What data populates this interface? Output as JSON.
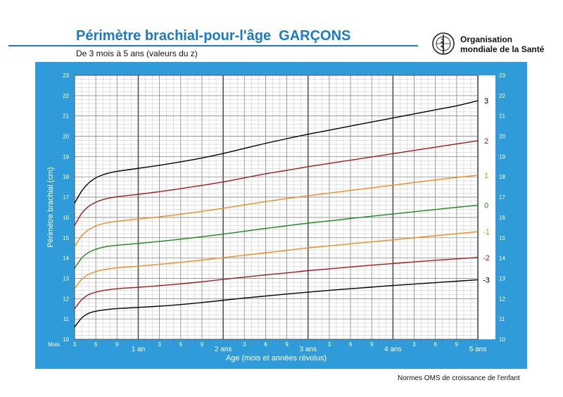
{
  "header": {
    "title": "Périmètre brachial-pour-l'âge  GARÇONS",
    "subtitle": "De 3 mois à 5 ans (valeurs du z)",
    "org_line1": "Organisation",
    "org_line2": "mondiale de la Santé",
    "logo_icon": "who-emblem-icon"
  },
  "footer": {
    "text": "Normes OMS de croissance de l'enfant"
  },
  "colors": {
    "brand_blue": "#1a7ac3",
    "panel_blue": "#2f9bd8",
    "black": "#000000",
    "red": "#a31b1b",
    "orange": "#f28a1a",
    "green": "#1b8a1b"
  },
  "chart_data": {
    "type": "line",
    "title": "Périmètre brachial-pour-l'âge  GARÇONS",
    "xlabel": "Age (mois et années révolus)",
    "ylabel": "Périmètre brachial (cm)",
    "x_unit_label": "Mois",
    "xlim": [
      3,
      60
    ],
    "ylim": [
      10,
      23
    ],
    "y_ticks": [
      10,
      11,
      12,
      13,
      14,
      15,
      16,
      17,
      18,
      19,
      20,
      21,
      22,
      23
    ],
    "month_ticks": [
      {
        "x": 3,
        "label": "3"
      },
      {
        "x": 6,
        "label": "6"
      },
      {
        "x": 9,
        "label": "9"
      },
      {
        "x": 15,
        "label": "3"
      },
      {
        "x": 18,
        "label": "6"
      },
      {
        "x": 21,
        "label": "9"
      },
      {
        "x": 27,
        "label": "3"
      },
      {
        "x": 30,
        "label": "6"
      },
      {
        "x": 33,
        "label": "9"
      },
      {
        "x": 39,
        "label": "3"
      },
      {
        "x": 42,
        "label": "6"
      },
      {
        "x": 45,
        "label": "9"
      },
      {
        "x": 51,
        "label": "3"
      },
      {
        "x": 54,
        "label": "6"
      },
      {
        "x": 57,
        "label": "9"
      }
    ],
    "year_ticks": [
      {
        "x": 12,
        "label": "1 an"
      },
      {
        "x": 24,
        "label": "2 ans"
      },
      {
        "x": 36,
        "label": "3 ans"
      },
      {
        "x": 48,
        "label": "4 ans"
      },
      {
        "x": 60,
        "label": "5 ans"
      }
    ],
    "grid": true,
    "x": [
      3,
      4,
      5,
      6,
      7,
      8,
      9,
      10,
      12,
      15,
      18,
      21,
      24,
      27,
      30,
      33,
      36,
      39,
      42,
      45,
      48,
      51,
      54,
      57,
      60
    ],
    "series": [
      {
        "name": "3",
        "color": "#000000",
        "values": [
          16.7,
          17.3,
          17.7,
          17.95,
          18.1,
          18.2,
          18.27,
          18.32,
          18.42,
          18.57,
          18.74,
          18.93,
          19.15,
          19.4,
          19.65,
          19.88,
          20.1,
          20.3,
          20.5,
          20.7,
          20.9,
          21.1,
          21.3,
          21.5,
          21.75
        ]
      },
      {
        "name": "2",
        "color": "#a31b1b",
        "values": [
          15.6,
          16.2,
          16.55,
          16.75,
          16.88,
          16.96,
          17.02,
          17.06,
          17.14,
          17.27,
          17.42,
          17.58,
          17.75,
          17.95,
          18.15,
          18.32,
          18.5,
          18.66,
          18.82,
          18.98,
          19.14,
          19.3,
          19.46,
          19.62,
          19.78
        ]
      },
      {
        "name": "1",
        "color": "#f28a1a",
        "values": [
          14.55,
          15.1,
          15.4,
          15.58,
          15.69,
          15.76,
          15.81,
          15.85,
          15.92,
          16.03,
          16.16,
          16.3,
          16.45,
          16.62,
          16.78,
          16.93,
          17.07,
          17.2,
          17.33,
          17.46,
          17.59,
          17.72,
          17.85,
          17.97,
          18.08
        ]
      },
      {
        "name": "0",
        "color": "#1b8a1b",
        "values": [
          13.5,
          14.0,
          14.28,
          14.43,
          14.53,
          14.59,
          14.63,
          14.66,
          14.72,
          14.82,
          14.93,
          15.05,
          15.18,
          15.32,
          15.46,
          15.59,
          15.72,
          15.83,
          15.95,
          16.06,
          16.17,
          16.28,
          16.39,
          16.5,
          16.6
        ]
      },
      {
        "name": "-1",
        "color": "#f28a1a",
        "values": [
          12.5,
          12.95,
          13.2,
          13.33,
          13.42,
          13.48,
          13.52,
          13.55,
          13.6,
          13.69,
          13.79,
          13.9,
          14.02,
          14.14,
          14.26,
          14.38,
          14.5,
          14.6,
          14.7,
          14.8,
          14.9,
          15.0,
          15.1,
          15.2,
          15.3
        ]
      },
      {
        "name": "-2",
        "color": "#a31b1b",
        "values": [
          11.5,
          11.95,
          12.2,
          12.32,
          12.4,
          12.45,
          12.49,
          12.52,
          12.56,
          12.64,
          12.73,
          12.83,
          12.95,
          13.06,
          13.17,
          13.27,
          13.38,
          13.47,
          13.56,
          13.65,
          13.73,
          13.81,
          13.89,
          13.96,
          14.03
        ]
      },
      {
        "name": "-3",
        "color": "#000000",
        "values": [
          10.6,
          11.05,
          11.28,
          11.38,
          11.44,
          11.48,
          11.51,
          11.53,
          11.57,
          11.63,
          11.71,
          11.81,
          11.92,
          12.03,
          12.13,
          12.23,
          12.32,
          12.41,
          12.49,
          12.57,
          12.65,
          12.72,
          12.79,
          12.86,
          12.93
        ]
      }
    ]
  }
}
